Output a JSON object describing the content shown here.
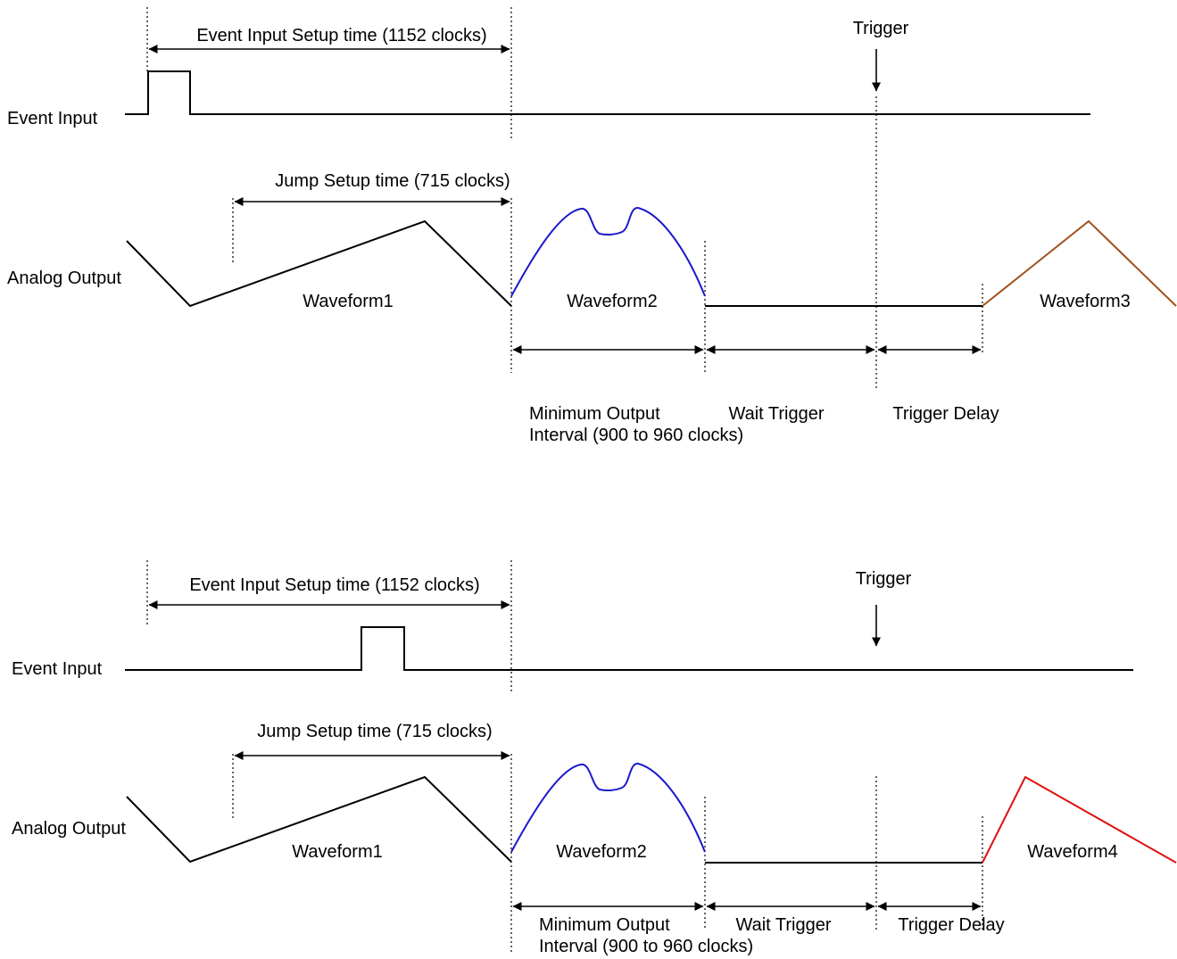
{
  "colors": {
    "signal": "#000000",
    "waveform2": "#1a1acc",
    "waveform3": "#a0521d",
    "waveform4": "#e01010"
  },
  "diagram1": {
    "event_input_setup": "Event Input Setup time (1152 clocks)",
    "trigger": "Trigger",
    "event_input": "Event Input",
    "jump_setup": "Jump Setup time (715 clocks)",
    "analog_output": "Analog Output",
    "waveform1": "Waveform1",
    "waveform2": "Waveform2",
    "waveform_last": "Waveform3",
    "min_output_1": "Minimum Output",
    "min_output_2": "Interval (900 to 960 clocks)",
    "wait_trigger": "Wait Trigger",
    "trigger_delay": "Trigger Delay"
  },
  "diagram2": {
    "event_input_setup": "Event Input Setup time (1152 clocks)",
    "trigger": "Trigger",
    "event_input": "Event Input",
    "jump_setup": "Jump Setup time (715 clocks)",
    "analog_output": "Analog Output",
    "waveform1": "Waveform1",
    "waveform2": "Waveform2",
    "waveform_last": "Waveform4",
    "min_output_1": "Minimum Output",
    "min_output_2": "Interval (900 to 960 clocks)",
    "wait_trigger": "Wait Trigger",
    "trigger_delay": "Trigger Delay"
  }
}
